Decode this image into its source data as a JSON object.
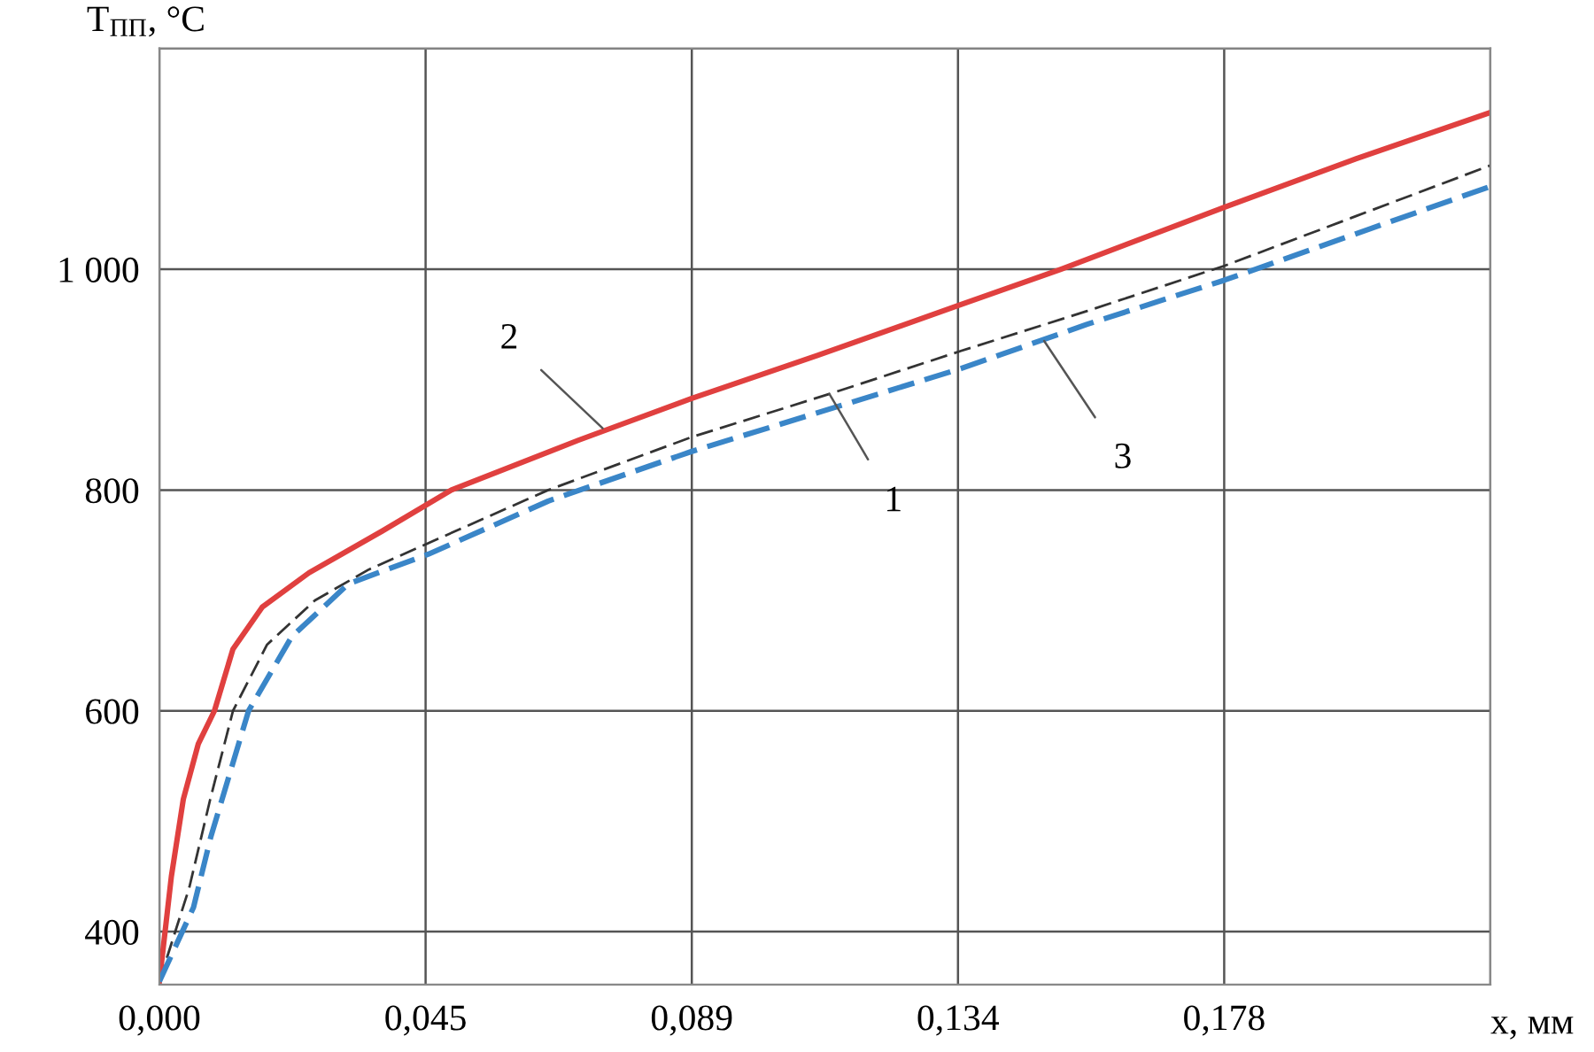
{
  "chart_data": {
    "type": "line",
    "xlabel": "x, мм",
    "ylabel": "T$_{ПП}$, °C",
    "xlim": [
      0,
      0.2225
    ],
    "ylim": [
      352,
      1200
    ],
    "xticks": [
      {
        "value": 0,
        "label": "0,000"
      },
      {
        "value": 0.0445,
        "label": "0,045"
      },
      {
        "value": 0.089,
        "label": "0,089"
      },
      {
        "value": 0.1335,
        "label": "0,134"
      },
      {
        "value": 0.178,
        "label": "0,178"
      },
      {
        "value": 0.2225,
        "label": null
      }
    ],
    "yticks": [
      400,
      600,
      800,
      {
        "value": 1000,
        "label": "1 000"
      },
      {
        "value": 1200,
        "label": null
      }
    ],
    "grid": true,
    "marker": "none",
    "series": [
      {
        "color": "#333333",
        "line_style": "dashed",
        "x": [
          0,
          0.005,
          0.0085,
          0.0123,
          0.018,
          0.026,
          0.035,
          0.045,
          0.065,
          0.089,
          0.112,
          0.134,
          0.155,
          0.178,
          0.2,
          0.2225
        ],
        "values": [
          355,
          440,
          520,
          600,
          660,
          700,
          728,
          752,
          800,
          848,
          887,
          926,
          962,
          1003,
          1048,
          1094
        ]
      },
      {
        "color": "#e0403f",
        "line_style": "solid",
        "x": [
          0,
          0.002,
          0.004,
          0.0065,
          0.0092,
          0.0123,
          0.0172,
          0.025,
          0.0373,
          0.0488,
          0.07,
          0.089,
          0.11,
          0.134,
          0.1507,
          0.178,
          0.2,
          0.2225
        ],
        "values": [
          355,
          450,
          520,
          570,
          600,
          656,
          694,
          725,
          763,
          800,
          845,
          883,
          922,
          968,
          1000,
          1056,
          1100,
          1142
        ]
      },
      {
        "color": "#3a86c8",
        "line_style": "dashed",
        "x": [
          0,
          0.0057,
          0.0086,
          0.0149,
          0.0221,
          0.0316,
          0.045,
          0.065,
          0.089,
          0.11,
          0.134,
          0.155,
          0.178,
          0.2,
          0.2225
        ],
        "values": [
          355,
          422,
          486,
          600,
          667,
          715,
          742,
          790,
          835,
          870,
          910,
          950,
          990,
          1032,
          1075
        ]
      }
    ],
    "annotations": [
      {
        "text": "1",
        "x": 0.112,
        "y": 887
      },
      {
        "text": "2",
        "x": 0.0741,
        "y": 856
      },
      {
        "text": "3",
        "x": 0.1479,
        "y": 935
      }
    ]
  }
}
